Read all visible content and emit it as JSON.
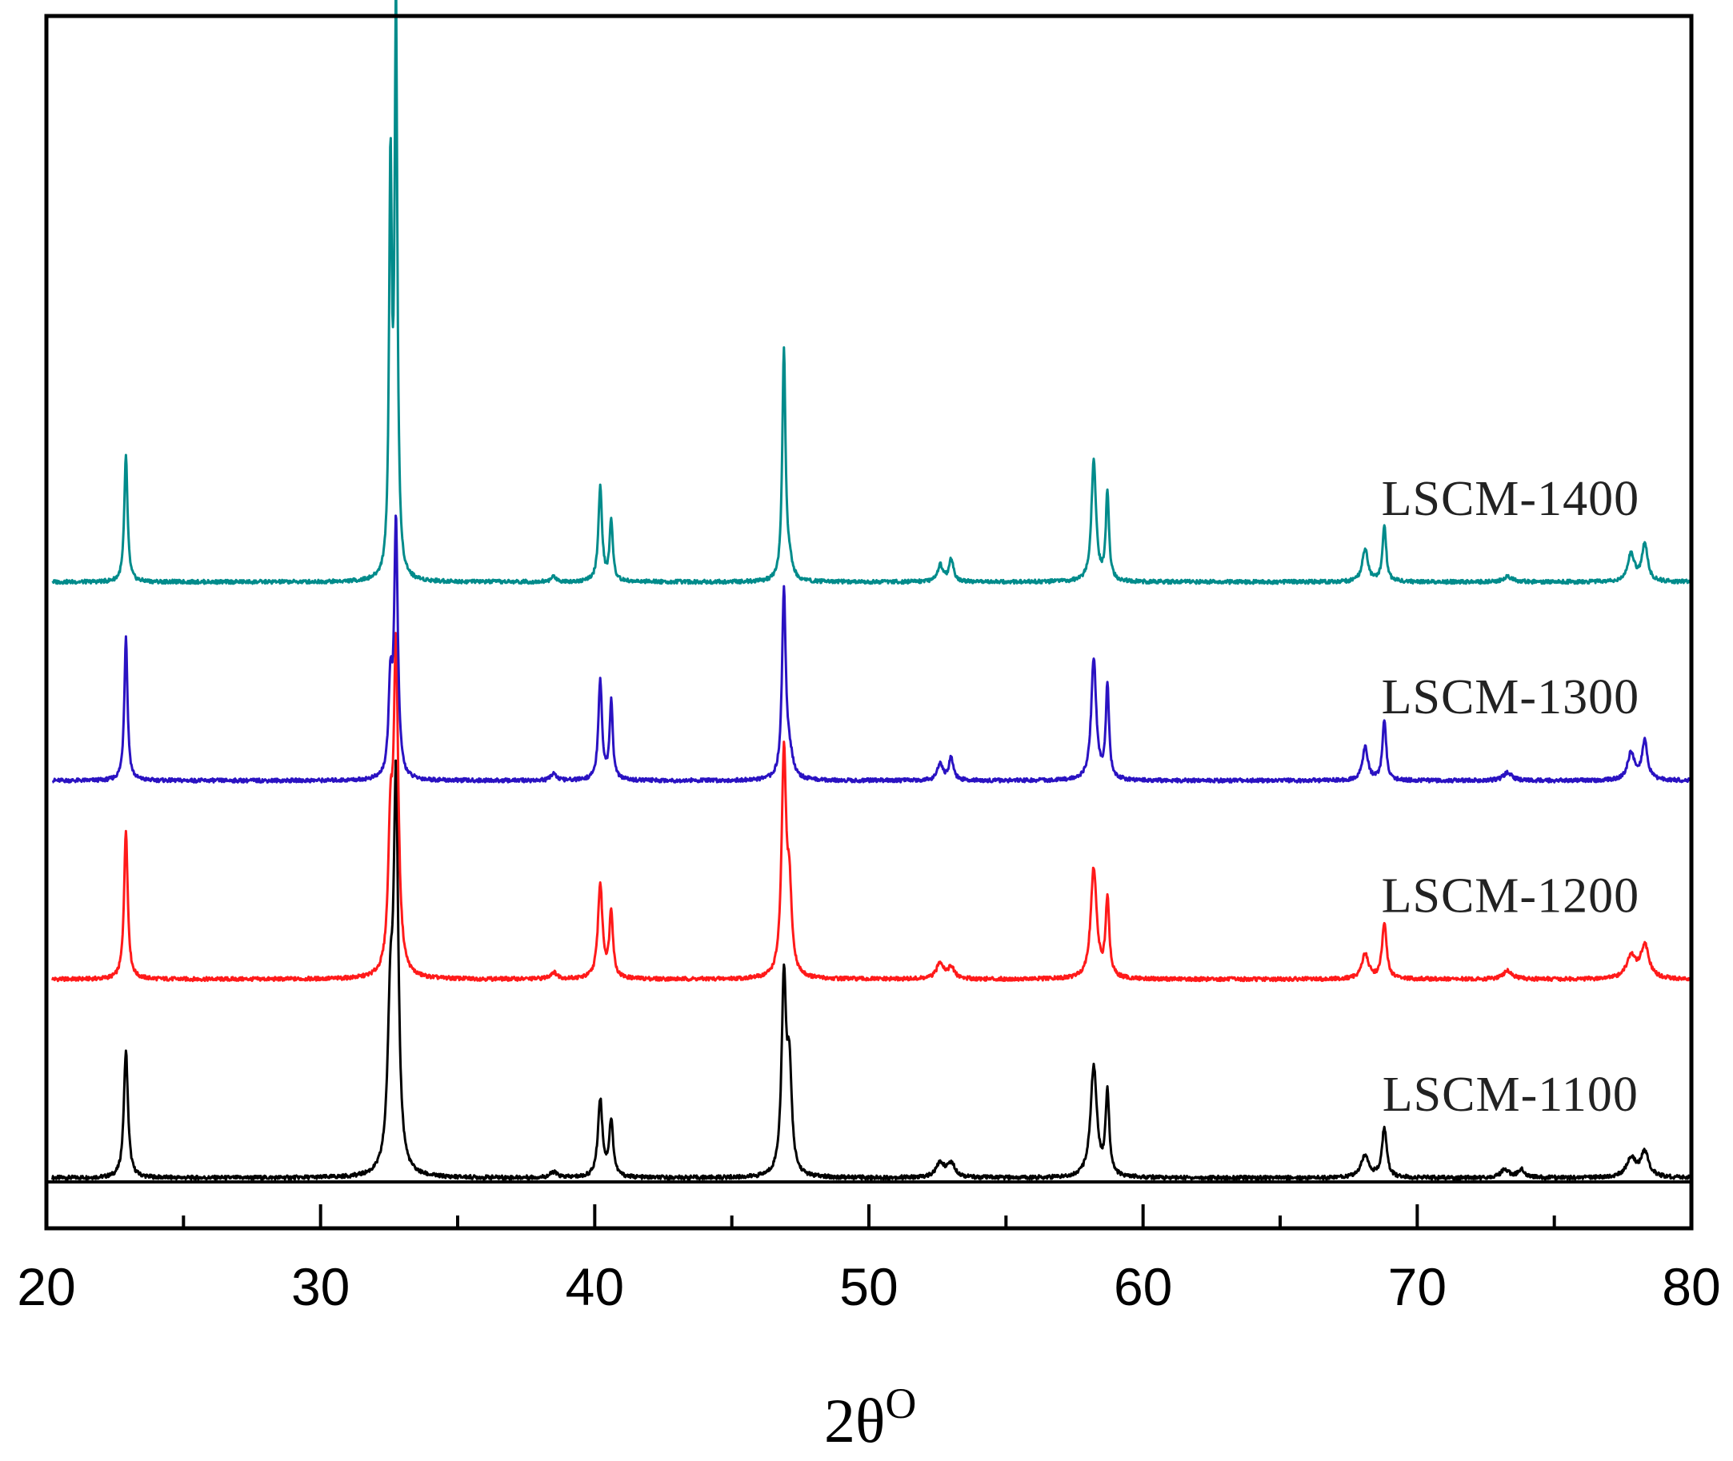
{
  "chart_data": {
    "type": "line",
    "title": "",
    "xlabel": "2θ",
    "xlabel_superscript": "O",
    "ylabel": "",
    "xlim": [
      20,
      80
    ],
    "xticks": [
      20,
      30,
      40,
      50,
      60,
      70,
      80
    ],
    "minor_xticks": [
      25,
      35,
      45,
      55,
      65,
      75
    ],
    "grid": false,
    "y_axis_ticks_shown": false,
    "units": "relative intensity (offset traces)",
    "series": [
      {
        "name": "LSCM-1100",
        "label": "LSCM-1100",
        "color": "#000000",
        "offset": 0,
        "peaks": [
          {
            "x": 22.9,
            "h": 23,
            "w": 0.09
          },
          {
            "x": 32.55,
            "h": 28,
            "w": 0.12
          },
          {
            "x": 32.75,
            "h": 68,
            "w": 0.1
          },
          {
            "x": 38.5,
            "h": 1,
            "w": 0.15
          },
          {
            "x": 40.2,
            "h": 14,
            "w": 0.1
          },
          {
            "x": 40.6,
            "h": 10,
            "w": 0.09
          },
          {
            "x": 46.9,
            "h": 35,
            "w": 0.1
          },
          {
            "x": 47.1,
            "h": 18,
            "w": 0.1
          },
          {
            "x": 52.6,
            "h": 2.5,
            "w": 0.18
          },
          {
            "x": 53.0,
            "h": 2.5,
            "w": 0.18
          },
          {
            "x": 58.2,
            "h": 20,
            "w": 0.14
          },
          {
            "x": 58.7,
            "h": 15,
            "w": 0.08
          },
          {
            "x": 68.1,
            "h": 4,
            "w": 0.18
          },
          {
            "x": 68.8,
            "h": 9,
            "w": 0.1
          },
          {
            "x": 73.2,
            "h": 1.5,
            "w": 0.18
          },
          {
            "x": 73.8,
            "h": 1.5,
            "w": 0.15
          },
          {
            "x": 77.8,
            "h": 3.5,
            "w": 0.2
          },
          {
            "x": 78.3,
            "h": 4.5,
            "w": 0.18
          }
        ]
      },
      {
        "name": "LSCM-1200",
        "label": "LSCM-1200",
        "color": "#ff1a1a",
        "offset": 36,
        "peaks": [
          {
            "x": 22.9,
            "h": 27,
            "w": 0.08
          },
          {
            "x": 32.55,
            "h": 24,
            "w": 0.1
          },
          {
            "x": 32.75,
            "h": 58,
            "w": 0.1
          },
          {
            "x": 38.5,
            "h": 1.2,
            "w": 0.15
          },
          {
            "x": 40.2,
            "h": 17,
            "w": 0.1
          },
          {
            "x": 40.6,
            "h": 12,
            "w": 0.08
          },
          {
            "x": 46.9,
            "h": 40,
            "w": 0.1
          },
          {
            "x": 47.1,
            "h": 14,
            "w": 0.1
          },
          {
            "x": 52.6,
            "h": 3,
            "w": 0.15
          },
          {
            "x": 53.0,
            "h": 2,
            "w": 0.15
          },
          {
            "x": 58.2,
            "h": 20,
            "w": 0.13
          },
          {
            "x": 58.7,
            "h": 14,
            "w": 0.08
          },
          {
            "x": 68.1,
            "h": 4.5,
            "w": 0.15
          },
          {
            "x": 68.8,
            "h": 10,
            "w": 0.1
          },
          {
            "x": 73.3,
            "h": 1.5,
            "w": 0.2
          },
          {
            "x": 77.8,
            "h": 4,
            "w": 0.2
          },
          {
            "x": 78.3,
            "h": 6,
            "w": 0.18
          }
        ]
      },
      {
        "name": "LSCM-1300",
        "label": "LSCM-1300",
        "color": "#2a12c2",
        "offset": 72,
        "peaks": [
          {
            "x": 22.9,
            "h": 26,
            "w": 0.07
          },
          {
            "x": 32.55,
            "h": 16,
            "w": 0.08
          },
          {
            "x": 32.75,
            "h": 46,
            "w": 0.08
          },
          {
            "x": 38.5,
            "h": 1.5,
            "w": 0.1
          },
          {
            "x": 40.2,
            "h": 18,
            "w": 0.08
          },
          {
            "x": 40.6,
            "h": 14,
            "w": 0.07
          },
          {
            "x": 46.9,
            "h": 34,
            "w": 0.08
          },
          {
            "x": 47.1,
            "h": 4,
            "w": 0.15
          },
          {
            "x": 52.6,
            "h": 3,
            "w": 0.12
          },
          {
            "x": 53.0,
            "h": 4,
            "w": 0.1
          },
          {
            "x": 58.2,
            "h": 22,
            "w": 0.11
          },
          {
            "x": 58.7,
            "h": 17,
            "w": 0.07
          },
          {
            "x": 68.1,
            "h": 6,
            "w": 0.12
          },
          {
            "x": 68.8,
            "h": 11,
            "w": 0.08
          },
          {
            "x": 73.3,
            "h": 1.5,
            "w": 0.18
          },
          {
            "x": 77.8,
            "h": 5,
            "w": 0.15
          },
          {
            "x": 78.3,
            "h": 7,
            "w": 0.12
          }
        ]
      },
      {
        "name": "LSCM-1400",
        "label": "LSCM-1400",
        "color": "#008b8b",
        "offset": 108,
        "peaks": [
          {
            "x": 22.9,
            "h": 23,
            "w": 0.07
          },
          {
            "x": 32.55,
            "h": 73,
            "w": 0.06
          },
          {
            "x": 32.75,
            "h": 103,
            "w": 0.06
          },
          {
            "x": 38.5,
            "h": 1,
            "w": 0.1
          },
          {
            "x": 40.2,
            "h": 17,
            "w": 0.08
          },
          {
            "x": 40.6,
            "h": 11,
            "w": 0.07
          },
          {
            "x": 46.9,
            "h": 42,
            "w": 0.07
          },
          {
            "x": 47.1,
            "h": 3,
            "w": 0.12
          },
          {
            "x": 52.6,
            "h": 3,
            "w": 0.12
          },
          {
            "x": 53.0,
            "h": 4,
            "w": 0.1
          },
          {
            "x": 58.2,
            "h": 22,
            "w": 0.1
          },
          {
            "x": 58.7,
            "h": 16,
            "w": 0.07
          },
          {
            "x": 68.1,
            "h": 6,
            "w": 0.12
          },
          {
            "x": 68.8,
            "h": 10,
            "w": 0.08
          },
          {
            "x": 73.3,
            "h": 1,
            "w": 0.18
          },
          {
            "x": 77.8,
            "h": 5,
            "w": 0.15
          },
          {
            "x": 78.3,
            "h": 7,
            "w": 0.12
          }
        ]
      }
    ]
  }
}
